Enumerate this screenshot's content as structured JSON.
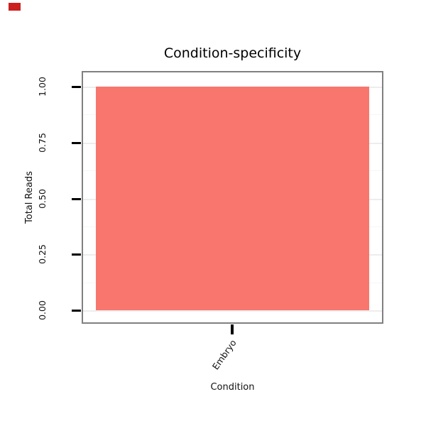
{
  "decorations": {
    "corner_marker_color": "#cc1f1f"
  },
  "chart_data": {
    "type": "bar",
    "title": "Condition-specificity",
    "xlabel": "Condition",
    "ylabel": "Total Reads",
    "categories": [
      "Embryo"
    ],
    "values": [
      1.0
    ],
    "ylim": [
      0,
      1.0
    ],
    "yticks": [
      {
        "label": "0.00",
        "value": 0
      },
      {
        "label": "0.25",
        "value": 0.25
      },
      {
        "label": "0.50",
        "value": 0.5
      },
      {
        "label": "0.75",
        "value": 0.75
      },
      {
        "label": "1.00",
        "value": 1.0
      }
    ],
    "y_minor": [
      0.125,
      0.375,
      0.625,
      0.875
    ],
    "bar_color": "#F8766D",
    "panel_border_color": "#808080",
    "grid_major_color": "#ededed",
    "grid_minor_color": "#f6f6f6",
    "legend": "none",
    "grid": "horizontal"
  }
}
